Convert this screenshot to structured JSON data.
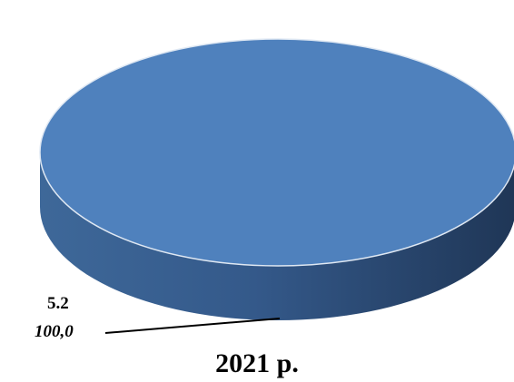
{
  "chart_data": {
    "type": "pie",
    "title": "2021 р.",
    "style": "3d",
    "slices": [
      {
        "label": "5.2",
        "value": 100.0,
        "value_text": "100,0",
        "color": "#4f81bd"
      }
    ],
    "legend": "none"
  }
}
